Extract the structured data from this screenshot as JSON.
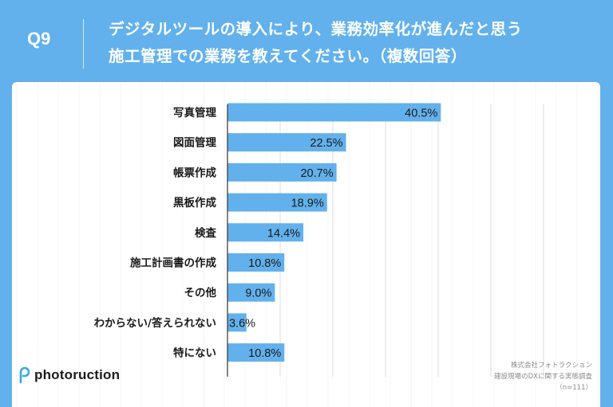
{
  "header": {
    "question_number": "Q9",
    "title_line1": "デジタルツールの導入により、業務効率化が進んだと思う",
    "title_line2": "施工管理での業務を教えてください。（複数回答）"
  },
  "chart_data": {
    "type": "bar",
    "orientation": "horizontal",
    "categories": [
      "写真管理",
      "図面管理",
      "帳票作成",
      "黒板作成",
      "検査",
      "施工計画書の作成",
      "その他",
      "わからない/答えられない",
      "特にない"
    ],
    "values": [
      40.5,
      22.5,
      20.7,
      18.9,
      14.4,
      10.8,
      9.0,
      3.6,
      10.8
    ],
    "value_labels": [
      "40.5%",
      "22.5%",
      "20.7%",
      "18.9%",
      "14.4%",
      "10.8%",
      "9.0%",
      "3.6%",
      "10.8%"
    ],
    "xlim": [
      0,
      60
    ],
    "grid": true,
    "bar_color": "#62b1ec"
  },
  "brand": {
    "logo_text": "photoruction",
    "logo_color": "#3aa7ea"
  },
  "source": {
    "line1": "株式会社フォトラクション",
    "line2": "建設現場のDXに関する実態調査",
    "line3": "（n=111）"
  }
}
